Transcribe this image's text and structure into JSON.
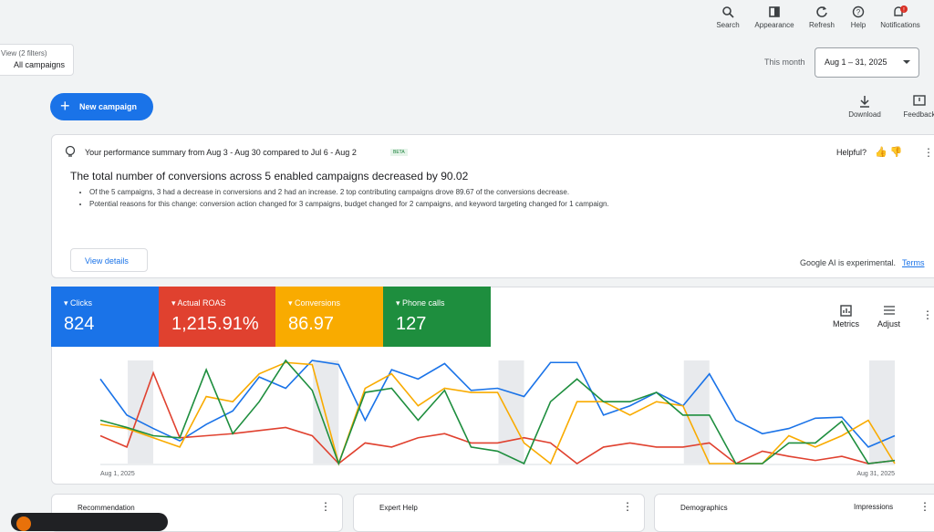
{
  "toolbar": [
    "Search",
    "Appearance",
    "Refresh",
    "Help",
    "Notifications"
  ],
  "filter": {
    "view": "View (2 filters)",
    "name": "All campaigns"
  },
  "date": {
    "label": "This month",
    "range": "Aug 1 – 31, 2025"
  },
  "new_campaign": "New campaign",
  "actions": [
    "Download",
    "Feedback"
  ],
  "summary": {
    "heading": "Your performance summary from Aug 3 - Aug 30 compared to Jul 6 - Aug 2",
    "badge": "BETA",
    "helpful": "Helpful?",
    "headline": "The total number of conversions across 5 enabled campaigns decreased by 90.02",
    "bullets": [
      "Of the 5 campaigns, 3 had a decrease in conversions and 2 had an increase. 2 top contributing campaigns drove 89.67 of the conversions decrease.",
      "Potential reasons for this change: conversion action changed for 3 campaigns, budget changed for 2 campaigns, and keyword targeting changed for 1 campaign."
    ],
    "button": "View details",
    "disclaimer": "Google AI is experimental.",
    "terms": "Terms"
  },
  "totals": [
    "824",
    "1,215.91%",
    "86.97",
    "127"
  ],
  "chart_tools": [
    "Metrics",
    "Adjust"
  ],
  "chart_data": {
    "type": "line",
    "x": [
      "Aug 1, 2025",
      null,
      null,
      null,
      null,
      null,
      null,
      null,
      null,
      null,
      null,
      null,
      null,
      null,
      null,
      null,
      null,
      null,
      null,
      null,
      null,
      null,
      null,
      null,
      null,
      null,
      null,
      null,
      null,
      null,
      "Aug 31, 2025"
    ],
    "ylim": [
      0,
      100
    ],
    "series": [
      {
        "name": "Clicks",
        "color": "#1a73e8",
        "values": [
          82,
          47,
          34,
          22,
          38,
          51,
          84,
          73,
          100,
          96,
          42,
          91,
          82,
          97,
          71,
          73,
          65,
          98,
          98,
          47,
          56,
          69,
          56,
          87,
          42,
          29,
          34,
          44,
          45,
          16,
          27
        ]
      },
      {
        "name": "Actual ROAS",
        "color": "#e0412f",
        "values": [
          27,
          16,
          88,
          25,
          27,
          29,
          32,
          35,
          27,
          0,
          20,
          16,
          25,
          29,
          20,
          20,
          25,
          20,
          0,
          16,
          20,
          16,
          16,
          20,
          0,
          12,
          7,
          3,
          7,
          0,
          3
        ]
      },
      {
        "name": "Conversions",
        "color": "#f9ab00",
        "values": [
          38,
          34,
          25,
          16,
          65,
          60,
          87,
          98,
          96,
          0,
          73,
          87,
          56,
          73,
          69,
          69,
          20,
          0,
          60,
          60,
          47,
          60,
          56,
          0,
          0,
          0,
          27,
          16,
          27,
          42,
          0
        ]
      },
      {
        "name": "Phone calls",
        "color": "#1e8e3e",
        "values": [
          42,
          35,
          27,
          25,
          91,
          29,
          60,
          100,
          71,
          0,
          69,
          73,
          42,
          71,
          16,
          12,
          0,
          60,
          82,
          60,
          60,
          69,
          47,
          47,
          0,
          0,
          20,
          20,
          41,
          0,
          3
        ]
      }
    ]
  },
  "bottom_cards": [
    "Recommendation",
    "Expert Help",
    "Demographics"
  ],
  "demographics_metric": "Impressions"
}
